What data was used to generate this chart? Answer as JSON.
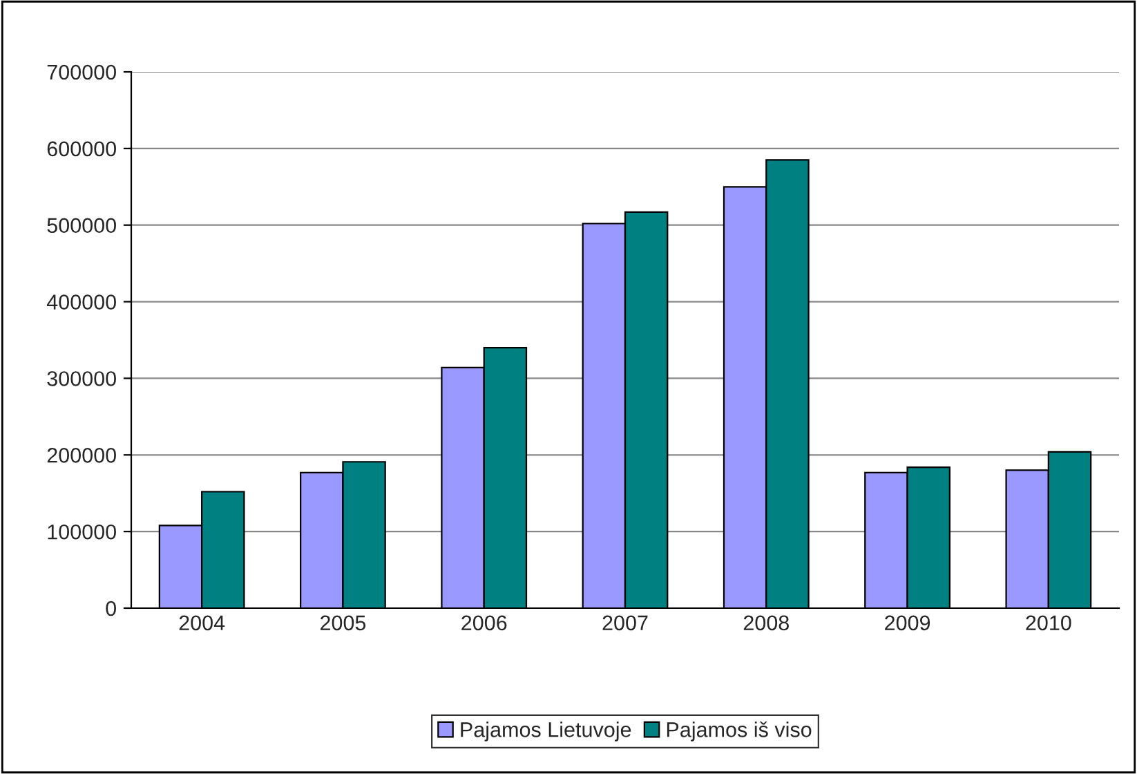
{
  "chart_data": {
    "type": "bar",
    "categories": [
      "2004",
      "2005",
      "2006",
      "2007",
      "2008",
      "2009",
      "2010"
    ],
    "series": [
      {
        "name": "Pajamos Lietuvoje",
        "color": "#9999ff",
        "values": [
          108000,
          177000,
          314000,
          502000,
          550000,
          177000,
          180000
        ]
      },
      {
        "name": "Pajamos iš viso",
        "color": "#008080",
        "values": [
          152000,
          191000,
          340000,
          517000,
          585000,
          184000,
          204000
        ]
      }
    ],
    "ylim": [
      0,
      700000
    ],
    "yticks": [
      0,
      100000,
      200000,
      300000,
      400000,
      500000,
      600000,
      700000
    ],
    "grid": "y",
    "legend": "bottom"
  }
}
